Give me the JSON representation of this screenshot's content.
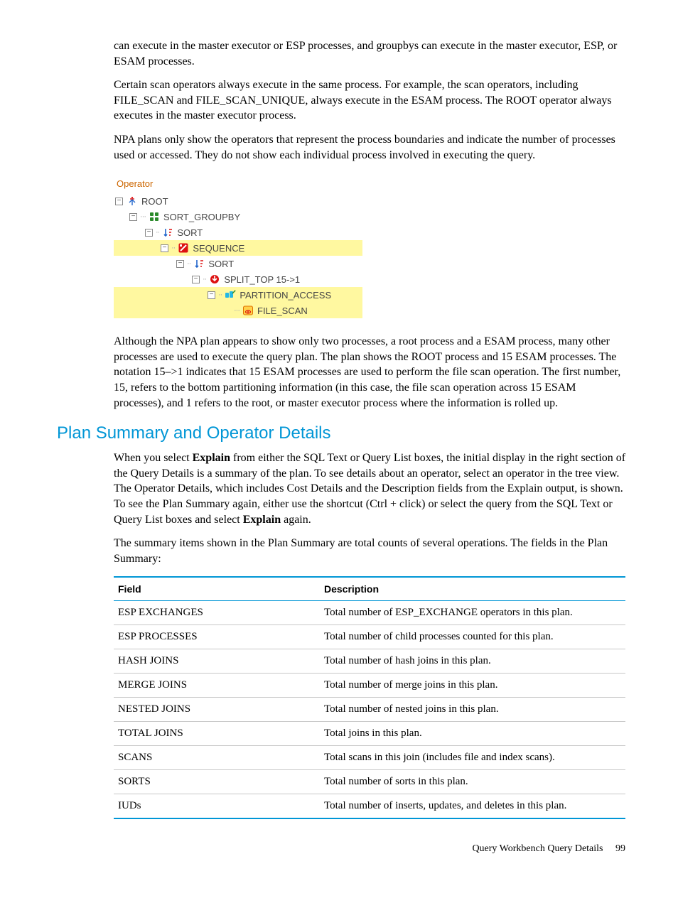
{
  "paragraphs": {
    "p1": "can execute in the master executor or ESP processes, and groupbys can execute in the master executor, ESP, or ESAM processes.",
    "p2": "Certain scan operators always execute in the same process. For example, the scan operators, including FILE_SCAN and FILE_SCAN_UNIQUE, always execute in the ESAM process. The ROOT operator always executes in the master executor process.",
    "p3": "NPA plans only show the operators that represent the process boundaries and indicate the number of processes used or accessed. They do not show each individual process involved in executing the query.",
    "p4": "Although the NPA plan appears to show only two processes, a root process and a ESAM process, many other processes are used to execute the query plan. The plan shows the ROOT process and 15 ESAM processes. The notation 15–>1 indicates that 15 ESAM processes are used to perform the file scan operation. The first number, 15, refers to the bottom partitioning information (in this case, the file scan operation across 15 ESAM processes), and 1 refers to the root, or master executor process where the information is rolled up.",
    "p5a": "When you select ",
    "p5b": "Explain",
    "p5c": " from either the SQL Text or Query List boxes, the initial display in the right section of the Query Details is a summary of the plan. To see details about an operator, select an operator in the tree view. The Operator Details, which includes Cost Details and the Description fields from the Explain output, is shown. To see the Plan Summary again, either use the shortcut (Ctrl + click) or select the query from the SQL Text or Query List boxes and select ",
    "p5d": "Explain",
    "p5e": " again.",
    "p6": "The summary items shown in the Plan Summary are total counts of several operations. The fields in the Plan Summary:"
  },
  "section_heading": "Plan Summary and Operator Details",
  "tree": {
    "header": "Operator",
    "nodes": {
      "root": "ROOT",
      "sortgrp": "SORT_GROUPBY",
      "sort1": "SORT",
      "sequence": "SEQUENCE",
      "sort2": "SORT",
      "splittop": "SPLIT_TOP  15->1",
      "partaccess": "PARTITION_ACCESS",
      "filescan": "FILE_SCAN"
    }
  },
  "table": {
    "headers": {
      "field": "Field",
      "desc": "Description"
    },
    "rows": [
      {
        "field": "ESP EXCHANGES",
        "desc": "Total number of ESP_EXCHANGE operators in this plan."
      },
      {
        "field": "ESP PROCESSES",
        "desc": "Total number of child processes counted for this plan."
      },
      {
        "field": "HASH JOINS",
        "desc": "Total number of hash joins in this plan."
      },
      {
        "field": "MERGE JOINS",
        "desc": "Total number of merge joins in this plan."
      },
      {
        "field": "NESTED JOINS",
        "desc": "Total number of nested joins in this plan."
      },
      {
        "field": "TOTAL JOINS",
        "desc": "Total joins in this plan."
      },
      {
        "field": "SCANS",
        "desc": "Total scans in this join (includes file and index scans)."
      },
      {
        "field": "SORTS",
        "desc": "Total number of sorts in this plan."
      },
      {
        "field": "IUDs",
        "desc": "Total number of inserts, updates, and deletes in this plan."
      }
    ]
  },
  "footer": {
    "title": "Query Workbench Query Details",
    "page": "99"
  },
  "colors": {
    "accent": "#0096d6",
    "tree_header": "#cc6600",
    "highlight": "#fff8a0",
    "red": "#d11",
    "green": "#2a8a2a",
    "blue": "#2266cc",
    "cyan": "#23b8e5",
    "orange": "#e07000",
    "yellowbox_fill": "#ffd24a",
    "rowline": "#c8c8c8"
  }
}
